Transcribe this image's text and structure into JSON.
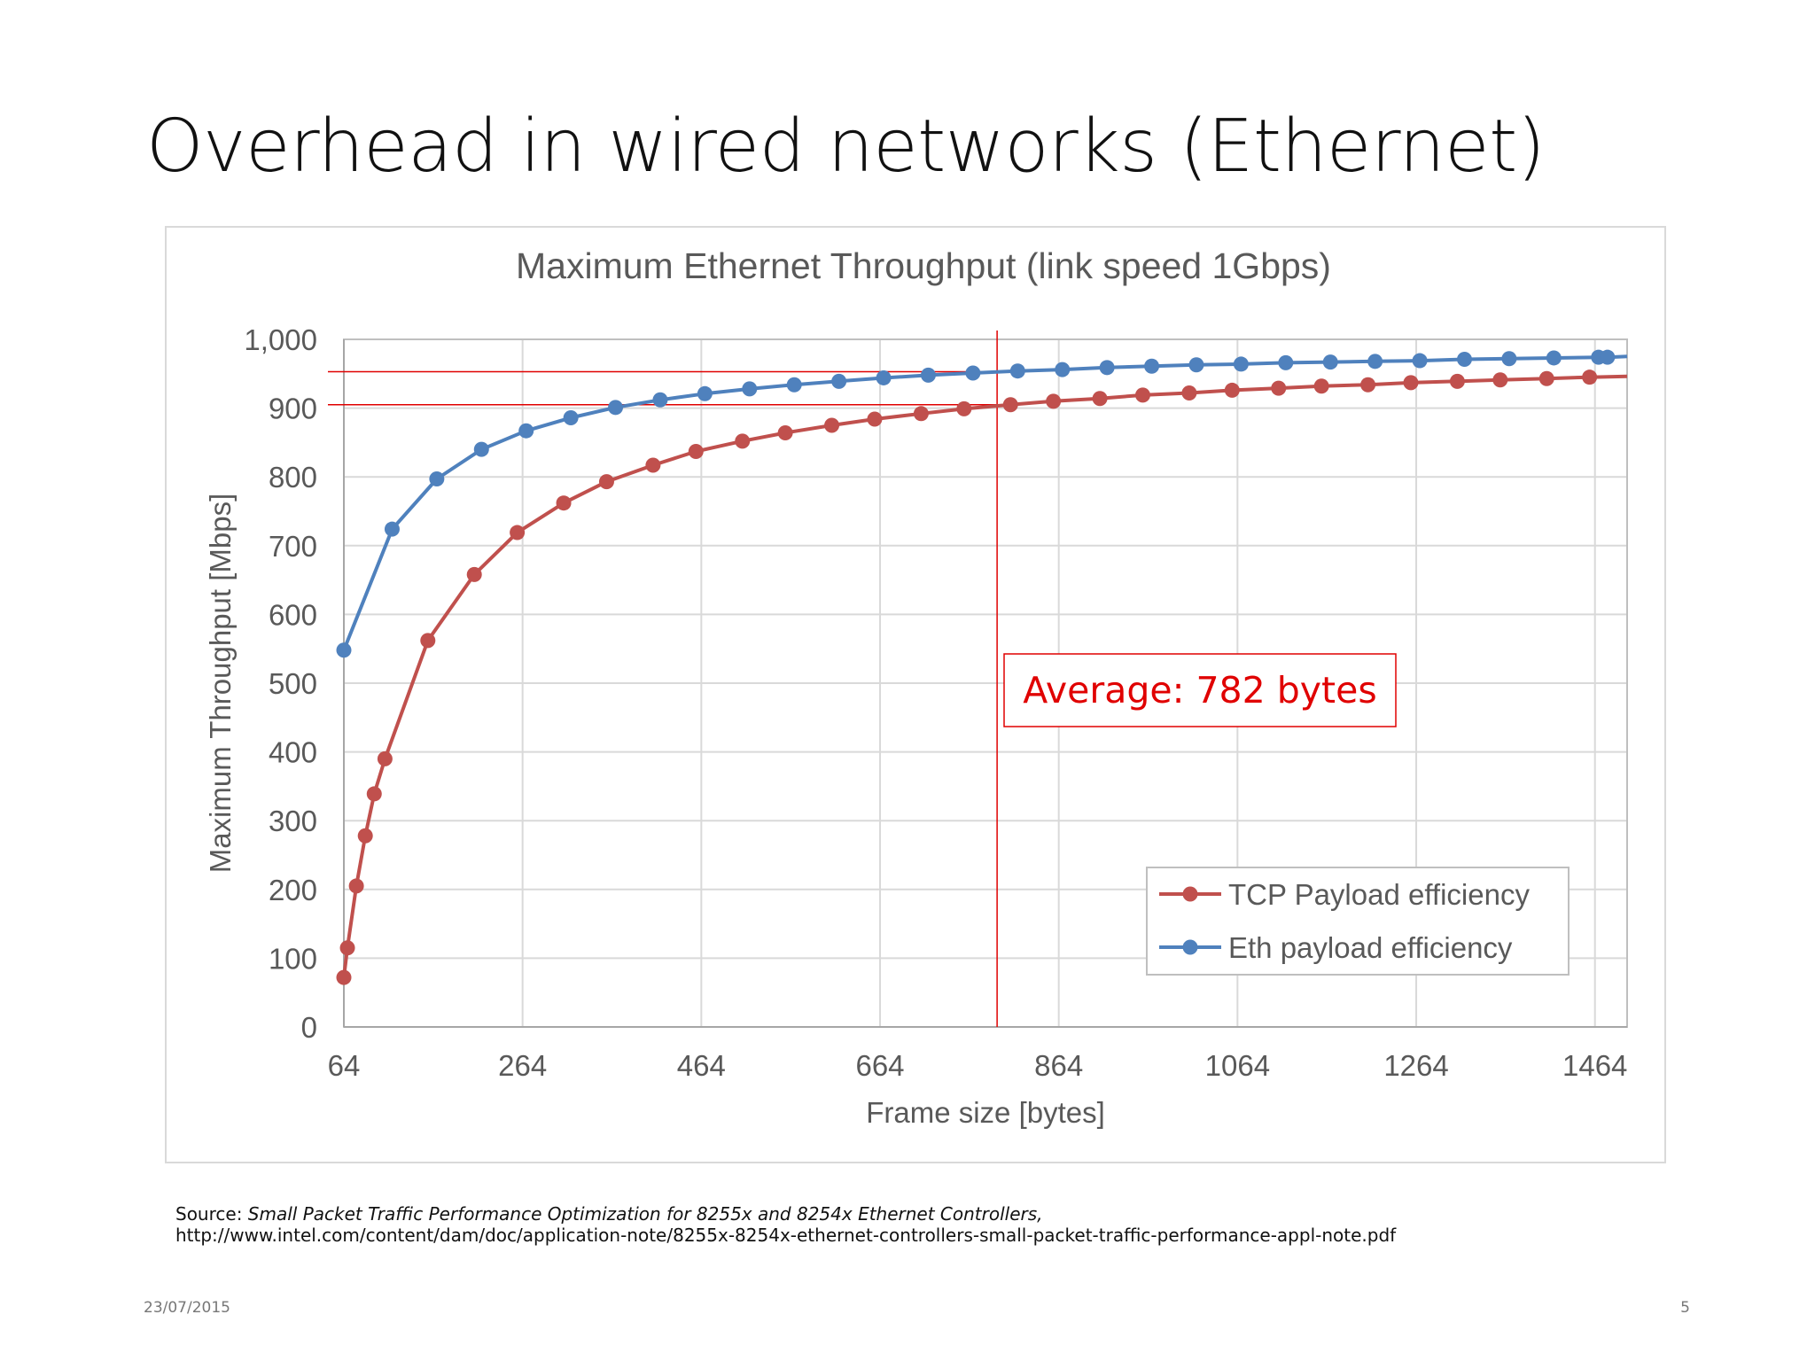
{
  "slide": {
    "title": "Overhead in wired networks (Ethernet)",
    "source_label": "Source: ",
    "source_title": "Small Packet Traffic Performance Optimization for 8255x and 8254x Ethernet Controllers,",
    "source_url": "http://www.intel.com/content/dam/doc/application-note/8255x-8254x-ethernet-controllers-small-packet-traffic-performance-appl-note.pdf",
    "date": "23/07/2015",
    "page_number": "5"
  },
  "chart_data": {
    "type": "line",
    "title": "Maximum Ethernet Throughput (link speed 1Gbps)",
    "xlabel": "Frame size [bytes]",
    "ylabel": "Maximum Throughput [Mbps]",
    "xlim": [
      64,
      1500
    ],
    "ylim": [
      0,
      1000
    ],
    "x_ticks": [
      64,
      264,
      464,
      664,
      864,
      1064,
      1264,
      1464
    ],
    "x_tick_labels": [
      "64",
      "264",
      "464",
      "664",
      "864",
      "1064",
      "1264",
      "1464"
    ],
    "y_ticks": [
      0,
      100,
      200,
      300,
      400,
      500,
      600,
      700,
      800,
      900,
      1000
    ],
    "y_tick_labels": [
      "0",
      "100",
      "200",
      "300",
      "400",
      "500",
      "600",
      "700",
      "800",
      "900",
      "1,000"
    ],
    "grid": true,
    "legend_position": "bottom-right",
    "series": [
      {
        "name": "TCP Payload efficiency",
        "color": "#c0504d",
        "x": [
          64,
          68,
          78,
          88,
          98,
          110,
          158,
          210,
          258,
          310,
          358,
          410,
          458,
          510,
          558,
          610,
          658,
          710,
          758,
          810,
          858,
          910,
          958,
          1010,
          1058,
          1110,
          1158,
          1210,
          1258,
          1310,
          1358,
          1410,
          1458
        ],
        "y": [
          72,
          115,
          205,
          278,
          339,
          390,
          562,
          658,
          719,
          762,
          793,
          817,
          837,
          852,
          864,
          875,
          884,
          892,
          899,
          905,
          910,
          914,
          919,
          922,
          926,
          929,
          932,
          934,
          937,
          939,
          941,
          943,
          945
        ]
      },
      {
        "name": "Eth payload efficiency",
        "color": "#4f81bd",
        "x": [
          64,
          118,
          168,
          218,
          268,
          318,
          368,
          418,
          468,
          518,
          568,
          618,
          668,
          718,
          768,
          818,
          868,
          918,
          968,
          1018,
          1068,
          1118,
          1168,
          1218,
          1268,
          1318,
          1368,
          1418,
          1468,
          1478
        ],
        "y": [
          548,
          724,
          797,
          840,
          867,
          886,
          901,
          912,
          921,
          928,
          934,
          939,
          944,
          948,
          951,
          954,
          956,
          959,
          961,
          963,
          964,
          966,
          967,
          968,
          969,
          971,
          972,
          973,
          974,
          974
        ]
      }
    ],
    "reference_lines": {
      "vertical_x": 795,
      "horizontal_y": [
        953,
        905
      ],
      "color": "#e00000"
    },
    "annotation": {
      "text": "Average: 782 bytes",
      "color": "#e00000"
    }
  }
}
